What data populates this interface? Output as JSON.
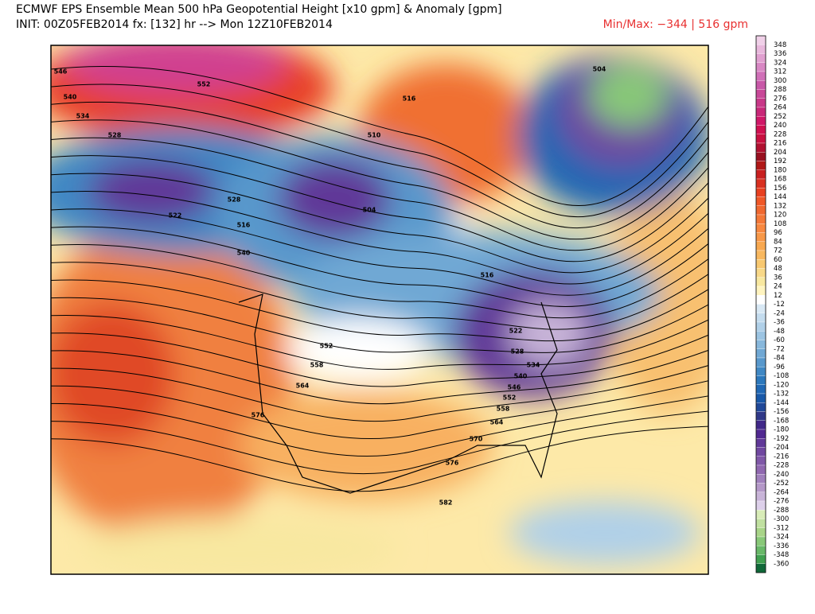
{
  "header": {
    "title": "ECMWF EPS Ensemble Mean 500 hPa Geopotential Height [x10 gpm] & Anomaly [gpm]",
    "init": "INIT: 00Z05FEB2014 fx: [132] hr --> Mon 12Z10FEB2014",
    "minmax": "Min/Max:  −344 |  516 gpm"
  },
  "map": {
    "contour_labels": [
      "546",
      "552",
      "540",
      "534",
      "528",
      "522",
      "528",
      "540",
      "504",
      "510",
      "516",
      "504",
      "516",
      "522",
      "528",
      "534",
      "540",
      "546",
      "552",
      "558",
      "564",
      "570",
      "576",
      "582",
      "552",
      "558",
      "564",
      "576",
      "516"
    ]
  },
  "colorbar": {
    "labels": [
      348,
      336,
      324,
      312,
      300,
      288,
      276,
      264,
      252,
      240,
      228,
      216,
      204,
      192,
      180,
      168,
      156,
      144,
      132,
      120,
      108,
      96,
      84,
      72,
      60,
      48,
      36,
      24,
      12,
      -12,
      -24,
      -36,
      -48,
      -60,
      -72,
      -84,
      -96,
      -108,
      -120,
      -132,
      -144,
      -156,
      -168,
      -180,
      -192,
      -204,
      -216,
      -228,
      -240,
      -252,
      -264,
      -276,
      -288,
      -300,
      -312,
      -324,
      -336,
      -348,
      -360
    ],
    "colors": [
      "#f0d0e8",
      "#e8b8dc",
      "#e0a0d0",
      "#d888c4",
      "#d070b8",
      "#c858a8",
      "#c84898",
      "#c83888",
      "#c82878",
      "#d01868",
      "#d01050",
      "#c81040",
      "#b01030",
      "#981020",
      "#b01818",
      "#c82020",
      "#d83020",
      "#e84020",
      "#f05828",
      "#f06830",
      "#f47838",
      "#f88840",
      "#f89848",
      "#f8a850",
      "#f8b860",
      "#f8c870",
      "#f8d888",
      "#f8e8a0",
      "#fff4c0",
      "#ffffff",
      "#d8e8f4",
      "#c4dcee",
      "#b0d0e8",
      "#9cc4e2",
      "#88b8dc",
      "#70a8d4",
      "#5898cc",
      "#4088c4",
      "#2c78bc",
      "#2068b4",
      "#1858a8",
      "#204898",
      "#303888",
      "#402888",
      "#502890",
      "#603898",
      "#7048a0",
      "#8058a8",
      "#9068b0",
      "#a080bc",
      "#b498c8",
      "#c8b4d8",
      "#ddd0ea",
      "#d8ecb8",
      "#c0e0a0",
      "#a8d488",
      "#88c878",
      "#68b868",
      "#40a050",
      "#106838"
    ]
  }
}
